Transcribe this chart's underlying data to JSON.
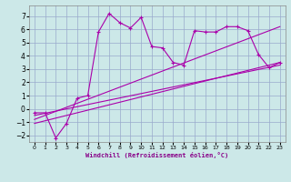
{
  "xlabel": "Windchill (Refroidissement éolien,°C)",
  "bg_color": "#cce8e8",
  "line_color": "#aa00aa",
  "grid_color": "#99aacc",
  "xlim": [
    -0.5,
    23.5
  ],
  "ylim": [
    -2.5,
    7.8
  ],
  "yticks": [
    -2,
    -1,
    0,
    1,
    2,
    3,
    4,
    5,
    6,
    7
  ],
  "xticks": [
    0,
    1,
    2,
    3,
    4,
    5,
    6,
    7,
    8,
    9,
    10,
    11,
    12,
    13,
    14,
    15,
    16,
    17,
    18,
    19,
    20,
    21,
    22,
    23
  ],
  "series": [
    {
      "x": [
        0,
        1,
        2,
        3,
        4,
        5,
        6,
        7,
        8,
        9,
        10,
        11,
        12,
        13,
        14,
        15,
        16,
        17,
        18,
        19,
        20,
        21,
        22,
        23
      ],
      "y": [
        -0.3,
        -0.3,
        -2.2,
        -1.1,
        0.8,
        1.0,
        5.8,
        7.2,
        6.5,
        6.1,
        6.9,
        4.7,
        4.6,
        3.5,
        3.3,
        5.9,
        5.8,
        5.8,
        6.2,
        6.2,
        5.9,
        4.1,
        3.1,
        3.5
      ],
      "marker": "+",
      "linestyle": "-",
      "linewidth": 0.8
    },
    {
      "x": [
        0,
        23
      ],
      "y": [
        -0.5,
        3.3
      ],
      "marker": null,
      "linestyle": "-",
      "linewidth": 0.8
    },
    {
      "x": [
        0,
        23
      ],
      "y": [
        -0.8,
        6.2
      ],
      "marker": null,
      "linestyle": "-",
      "linewidth": 0.8
    },
    {
      "x": [
        0,
        23
      ],
      "y": [
        -1.1,
        3.5
      ],
      "marker": null,
      "linestyle": "-",
      "linewidth": 0.8
    }
  ]
}
